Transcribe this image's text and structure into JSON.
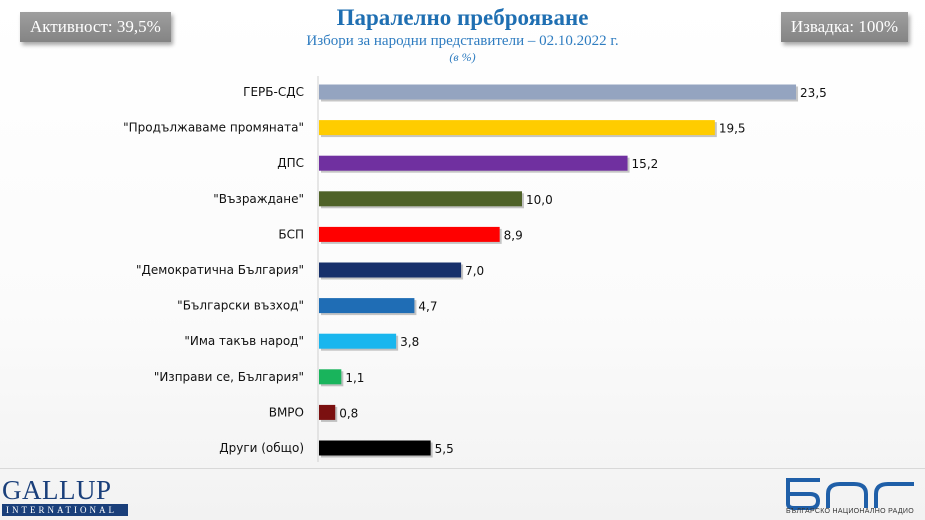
{
  "header": {
    "title": "Паралелно преброяване",
    "subtitle": "Избори за народни представители – 02.10.2022 г.",
    "unit": "(в %)",
    "turnout": "Активност: 39,5%",
    "sample": "Извадка: 100%"
  },
  "footer": {
    "gallup_logo": "GALLUP",
    "gallup_sub": "INTERNATIONAL",
    "bnr_logo": "БНР",
    "bnr_caption": "БЪЛГАРСКО НАЦИОНАЛНО РАДИО"
  },
  "chart_data": {
    "type": "bar",
    "orientation": "horizontal",
    "title": "Паралелно преброяване",
    "subtitle": "Избори за народни представители – 02.10.2022 г.",
    "xlabel": "",
    "ylabel": "",
    "xlim": [
      0,
      25
    ],
    "grid": false,
    "categories": [
      "ГЕРБ-СДС",
      "\"Продължаваме промяната\"",
      "ДПС",
      "\"Възраждане\"",
      "БСП",
      "\"Демократична България\"",
      "\"Български възход\"",
      "\"Има такъв народ\"",
      "\"Изправи се, България\"",
      "ВМРО",
      "Други (общо)"
    ],
    "values": [
      23.5,
      19.5,
      15.2,
      10.0,
      8.9,
      7.0,
      4.7,
      3.8,
      1.1,
      0.8,
      5.5
    ],
    "value_labels": [
      "23,5",
      "19,5",
      "15,2",
      "10,0",
      "8,9",
      "7,0",
      "4,7",
      "3,8",
      "1,1",
      "0,8",
      "5,5"
    ],
    "colors": [
      "#94a4c0",
      "#ffcc00",
      "#7030a0",
      "#4f6228",
      "#ff0000",
      "#17306b",
      "#1f6db5",
      "#19b6ee",
      "#19b45c",
      "#7b1010",
      "#000000"
    ]
  }
}
